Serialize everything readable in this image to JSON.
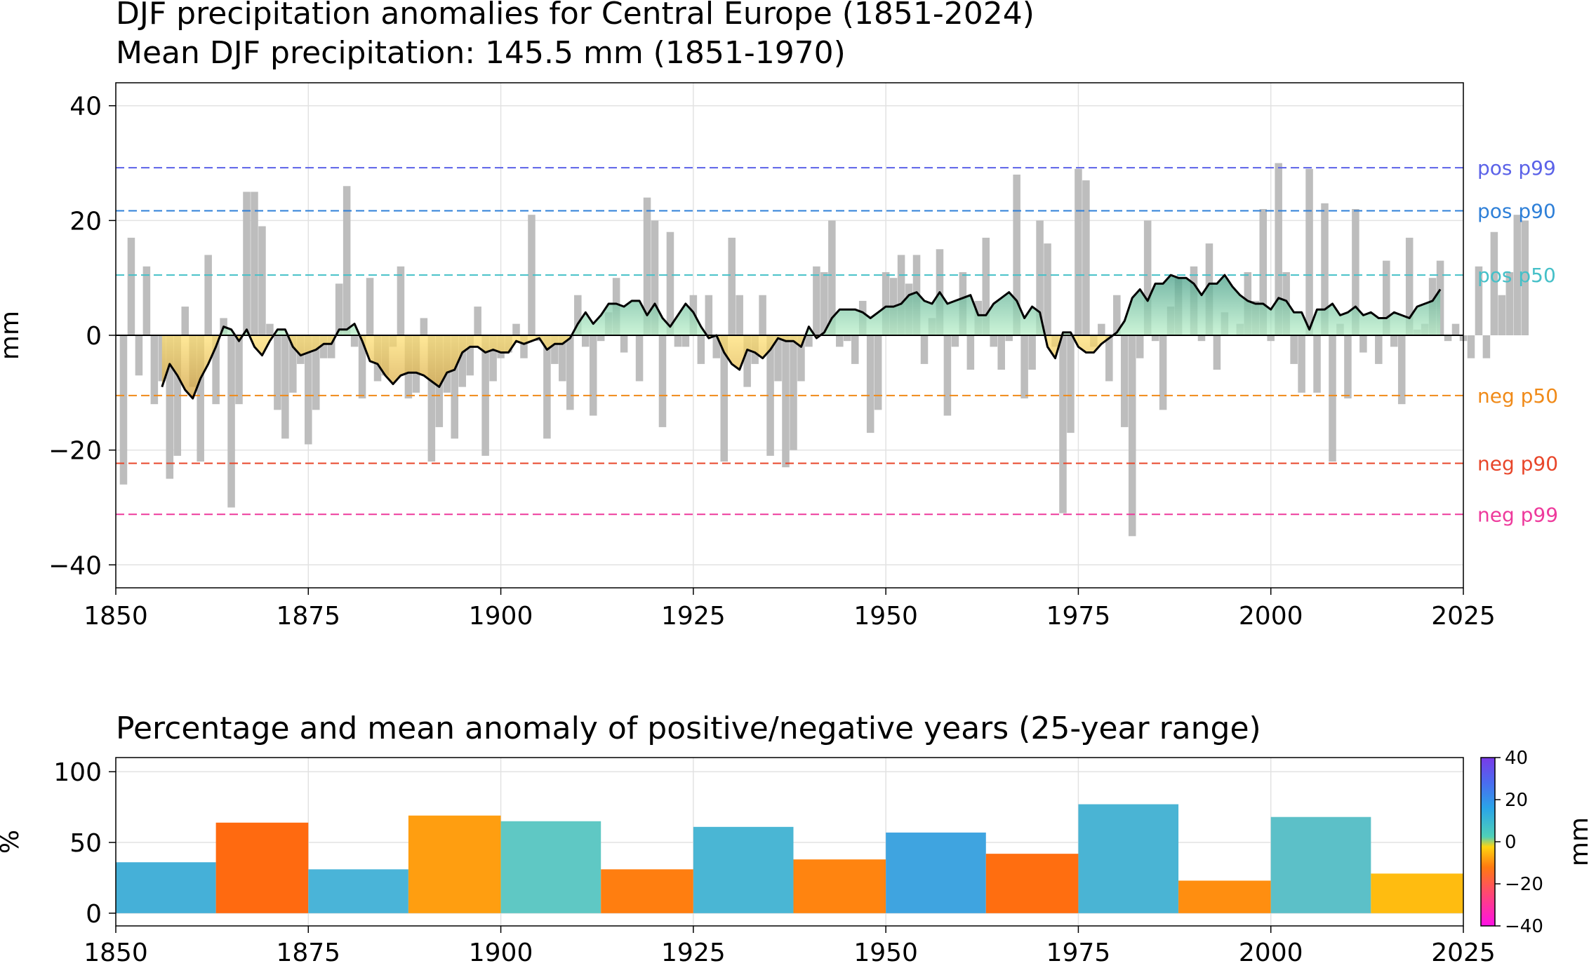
{
  "chart_data": [
    {
      "type": "bar",
      "title": "DJF precipitation anomalies for Central Europe (1851-2024)",
      "subtitle": "Mean DJF precipitation: 145.5 mm (1851-1970)",
      "xlabel": "",
      "ylabel": "mm",
      "xlim": [
        1850,
        2025
      ],
      "ylim": [
        -44,
        44
      ],
      "x_ticks": [
        "1850",
        "1875",
        "1900",
        "1925",
        "1950",
        "1975",
        "2000",
        "2025"
      ],
      "y_ticks": [
        "40",
        "20",
        "0",
        "−20",
        "−40"
      ],
      "grid": true,
      "bar_color": "#bdbdbd",
      "line_color": "#000000",
      "positive_fill_color": "#7fd3a0",
      "negative_fill_color": "#e8c04a",
      "years_start": 1851,
      "annual_anomaly": [
        -26,
        17,
        -7,
        12,
        -12,
        -8,
        -25,
        -21,
        5,
        -9,
        -22,
        14,
        -12,
        3,
        -30,
        -12,
        25,
        25,
        19,
        2,
        -13,
        -18,
        -10,
        -5,
        -19,
        -13,
        -4,
        -4,
        9,
        26,
        -2,
        -11,
        10,
        -8,
        -7,
        -2,
        12,
        -11,
        -10,
        3,
        -22,
        -16,
        -10,
        -18,
        -9,
        -7,
        5,
        -21,
        -8,
        -4,
        -3,
        2,
        -4,
        21,
        -1,
        -18,
        -5,
        -8,
        -13,
        7,
        -2,
        -14,
        -1,
        4,
        10,
        -3,
        0,
        -8,
        24,
        20,
        -16,
        18,
        -2,
        -2,
        7,
        -5,
        7,
        -4,
        -22,
        17,
        7,
        -9,
        -5,
        7,
        -21,
        -8,
        -23,
        -20,
        -8,
        -2,
        12,
        11,
        20,
        -2,
        -1,
        -5,
        6,
        -17,
        -13,
        11,
        10,
        14,
        9,
        14,
        -5,
        3,
        15,
        -14,
        -2,
        11,
        -6,
        6,
        17,
        -2,
        -6,
        -1,
        28,
        -11,
        -6,
        20,
        16,
        -2,
        -31,
        -17,
        29,
        27,
        -2,
        2,
        -8,
        7,
        -16,
        -35,
        -4,
        20,
        -1,
        -13,
        5,
        10,
        0,
        12,
        -1,
        16,
        -6,
        4,
        0,
        2,
        11,
        6,
        22,
        -1,
        30,
        11,
        -5,
        -10,
        29,
        -10,
        23,
        -22,
        2,
        -11,
        22,
        -3,
        0,
        -5,
        13,
        -2,
        -12,
        17,
        1,
        2,
        10,
        13,
        -1,
        2,
        -1,
        -4,
        12,
        -4,
        18,
        7,
        11,
        21,
        20
      ],
      "smoothed_start_year": 1856,
      "smoothed": [
        -9,
        -5,
        -7,
        -9.5,
        -11,
        -7.5,
        -5,
        -2,
        1.5,
        1,
        -1,
        1,
        -2,
        -3.5,
        -1,
        1,
        1,
        -2,
        -3.5,
        -3,
        -2.5,
        -1.5,
        -1.5,
        1,
        1,
        2,
        -1,
        -4.5,
        -5,
        -7,
        -8.5,
        -7,
        -6.5,
        -6.5,
        -7,
        -8,
        -9,
        -6.5,
        -6,
        -3,
        -2,
        -2,
        -3,
        -2.5,
        -3,
        -3,
        -1,
        -1.5,
        -1,
        -0.5,
        -2.5,
        -1.5,
        -1.5,
        -0.5,
        2,
        4,
        2,
        3.5,
        5.5,
        5.5,
        5,
        6,
        6,
        3.5,
        5.5,
        3,
        1.5,
        3.5,
        5.5,
        4,
        1.5,
        -0.5,
        0,
        -3,
        -5,
        -6,
        -2.5,
        -3,
        -4,
        -2.5,
        -0.5,
        -1,
        -1,
        -2,
        1.5,
        -0.5,
        0.5,
        3,
        4.5,
        4.5,
        4.5,
        4,
        3,
        4,
        5,
        5,
        5.5,
        7,
        7.5,
        6,
        5.5,
        7.5,
        5.5,
        6,
        6.5,
        7,
        3.5,
        3.5,
        5.5,
        6.5,
        7.5,
        6,
        3,
        5,
        4,
        -2,
        -4,
        0.5,
        0.5,
        -2,
        -3,
        -3,
        -1.5,
        -0.5,
        0.5,
        2.5,
        6.5,
        8,
        6,
        9,
        9,
        10.5,
        10,
        10,
        9,
        7,
        9,
        9,
        10.5,
        8.5,
        7,
        6,
        5.5,
        5.5,
        4.5,
        6.5,
        6,
        4,
        4,
        1,
        4.5,
        4.5,
        5.5,
        3.5,
        4,
        5,
        3.5,
        4,
        3,
        3,
        4,
        3.5,
        3,
        5,
        5.5,
        6,
        8
      ],
      "percentile_lines": [
        {
          "label": "pos p99",
          "value": 29.2,
          "color": "#5b62e8"
        },
        {
          "label": "pos p90",
          "value": 21.7,
          "color": "#2f80d8"
        },
        {
          "label": "pos p50",
          "value": 10.5,
          "color": "#45c0c8"
        },
        {
          "label": "neg p50",
          "value": -10.5,
          "color": "#f08a18"
        },
        {
          "label": "neg p90",
          "value": -22.3,
          "color": "#e8462a"
        },
        {
          "label": "neg p99",
          "value": -31.2,
          "color": "#ee3a9c"
        }
      ]
    },
    {
      "type": "bar",
      "title": "Percentage and mean anomaly of positive/negative years (25-year range)",
      "xlabel": "",
      "ylabel": "%",
      "xlim": [
        1850,
        2025
      ],
      "ylim": [
        -9,
        110
      ],
      "x_ticks": [
        "1850",
        "1875",
        "1900",
        "1925",
        "1950",
        "1975",
        "2000",
        "2025"
      ],
      "y_ticks": [
        "100",
        "50",
        "0"
      ],
      "grid": true,
      "bars": [
        {
          "start": 1850,
          "end": 1863,
          "value": 36,
          "color": "#45b0d8"
        },
        {
          "start": 1863,
          "end": 1875,
          "value": 64,
          "color": "#ff6a10"
        },
        {
          "start": 1875,
          "end": 1888,
          "value": 31,
          "color": "#4ab4d8"
        },
        {
          "start": 1888,
          "end": 1900,
          "value": 69,
          "color": "#ff9e10"
        },
        {
          "start": 1900,
          "end": 1913,
          "value": 65,
          "color": "#5fc8c4"
        },
        {
          "start": 1913,
          "end": 1925,
          "value": 31,
          "color": "#ff7e10"
        },
        {
          "start": 1925,
          "end": 1938,
          "value": 61,
          "color": "#4ab6d4"
        },
        {
          "start": 1938,
          "end": 1950,
          "value": 38,
          "color": "#ff8410"
        },
        {
          "start": 1950,
          "end": 1963,
          "value": 57,
          "color": "#3fa4e0"
        },
        {
          "start": 1963,
          "end": 1975,
          "value": 42,
          "color": "#ff6e10"
        },
        {
          "start": 1975,
          "end": 1988,
          "value": 77,
          "color": "#4ab4d4"
        },
        {
          "start": 1988,
          "end": 2000,
          "value": 23,
          "color": "#ff8e10"
        },
        {
          "start": 2000,
          "end": 2013,
          "value": 68,
          "color": "#5cc0c8"
        },
        {
          "start": 2013,
          "end": 2025,
          "value": 28,
          "color": "#ffbc10"
        }
      ],
      "colorbar": {
        "label": "mm",
        "range": [
          -40,
          40
        ],
        "ticks": [
          "40",
          "20",
          "0",
          "−20",
          "−40"
        ],
        "colors": [
          "#ff10e6",
          "#ff4a6e",
          "#ff7a10",
          "#ffd410",
          "#4fd0b8",
          "#2aa4e8",
          "#4a6cf0",
          "#7a3ae8"
        ]
      }
    }
  ]
}
